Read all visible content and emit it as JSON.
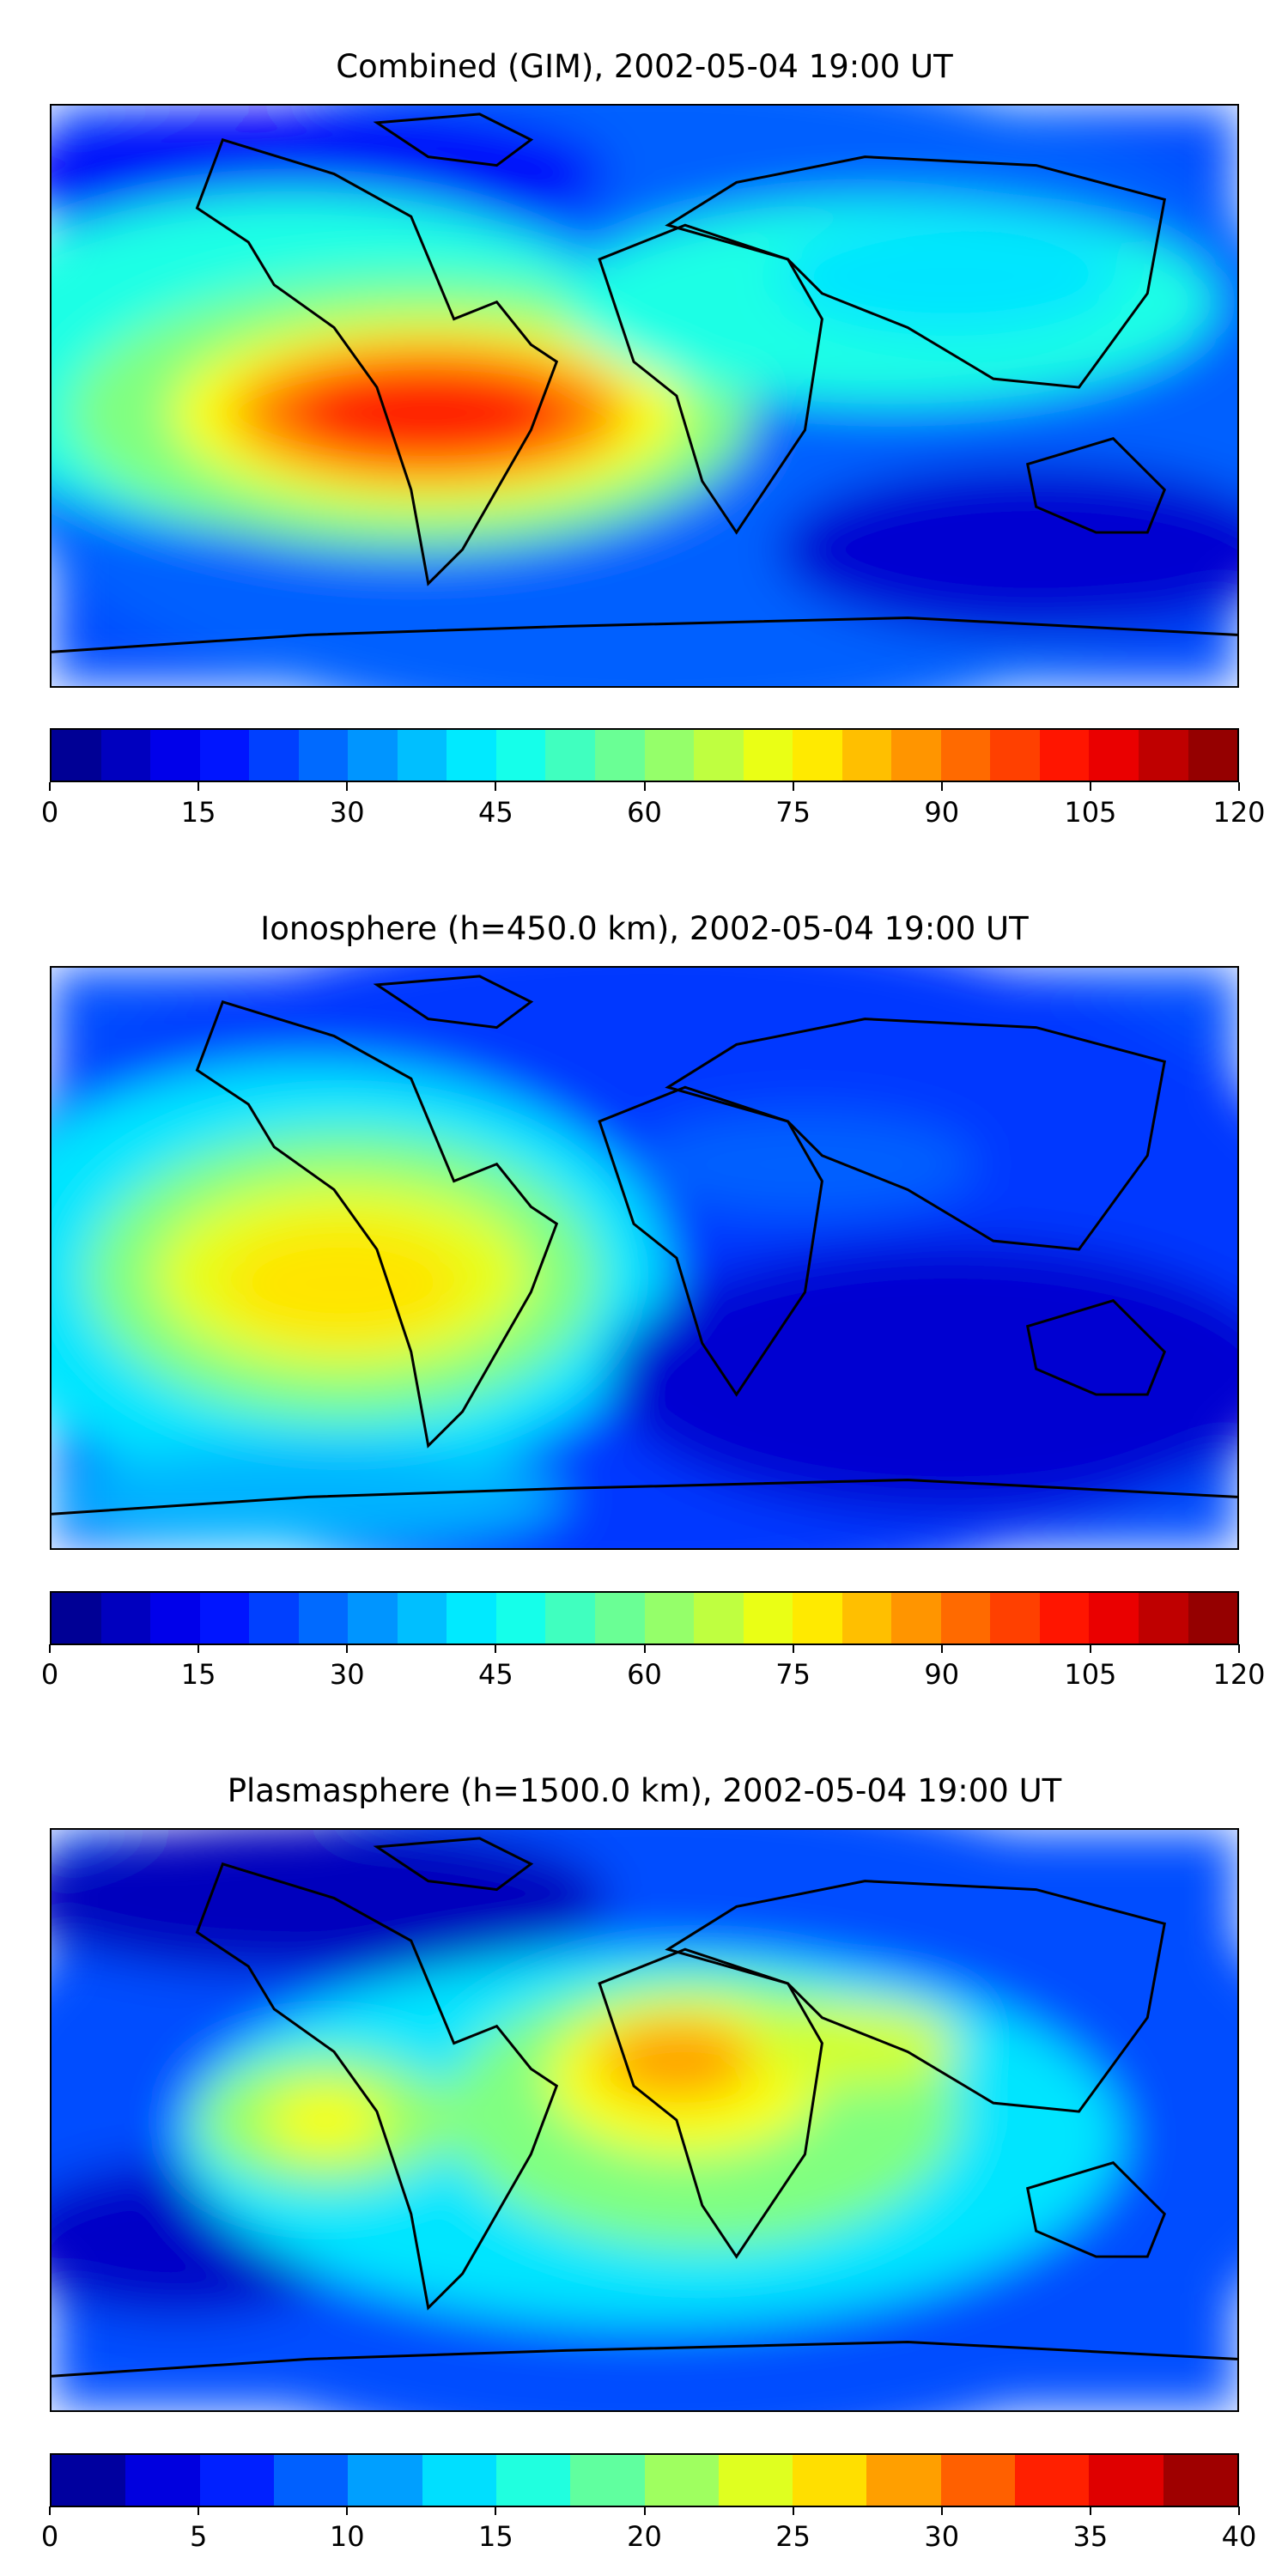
{
  "chart_data": [
    {
      "type": "heatmap",
      "title": "Combined (GIM), 2002-05-04 19:00 UT",
      "colormap": "jet",
      "colorbar": {
        "range": [
          0,
          120
        ],
        "levels": 24,
        "step": 5,
        "ticks": [
          0,
          15,
          30,
          45,
          60,
          75,
          90,
          105,
          120
        ]
      }
    },
    {
      "type": "heatmap",
      "title": "Ionosphere  (h=450.0 km), 2002-05-04 19:00 UT",
      "colormap": "jet",
      "colorbar": {
        "range": [
          0,
          120
        ],
        "levels": 24,
        "step": 5,
        "ticks": [
          0,
          15,
          30,
          45,
          60,
          75,
          90,
          105,
          120
        ]
      }
    },
    {
      "type": "heatmap",
      "title": "Plasmasphere (h=1500.0 km), 2002-05-04 19:00 UT",
      "colormap": "jet",
      "colorbar": {
        "range": [
          0,
          40
        ],
        "levels": 16,
        "step": 2.5,
        "ticks": [
          0,
          5,
          10,
          15,
          20,
          25,
          30,
          35,
          40
        ]
      }
    }
  ]
}
